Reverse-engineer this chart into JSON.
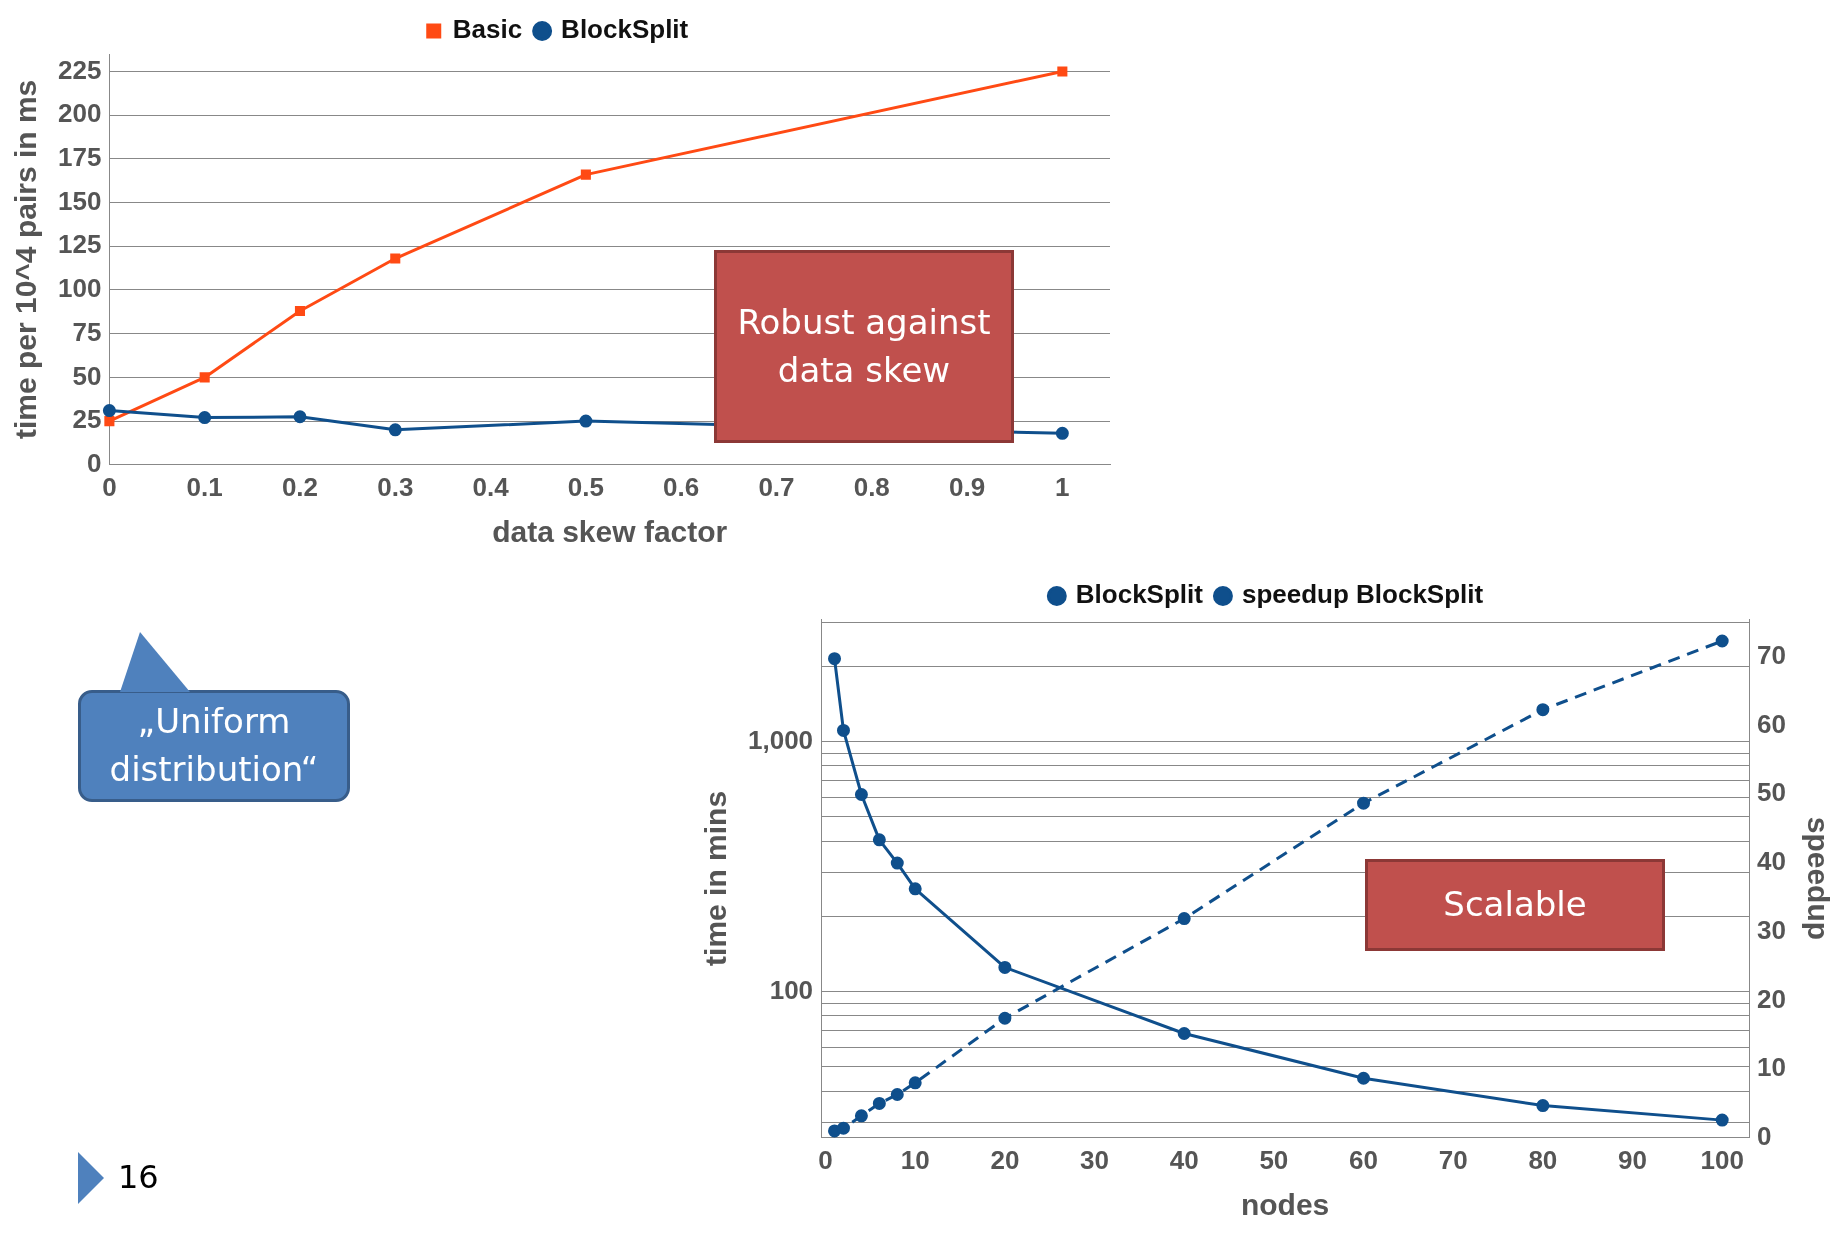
{
  "chart_data": [
    {
      "type": "line",
      "xlabel": "data skew factor",
      "ylabel": "time per 10^4 pairs in ms",
      "x": [
        0,
        0.1,
        0.2,
        0.3,
        0.5,
        1.0
      ],
      "series": [
        {
          "name": "Basic",
          "color": "#ff4a14",
          "marker": "square",
          "values": [
            25,
            50,
            88,
            118,
            166,
            225
          ]
        },
        {
          "name": "BlockSplit",
          "color": "#0f4f8c",
          "marker": "circle",
          "values": [
            31,
            27,
            27.5,
            20,
            25,
            18
          ]
        }
      ],
      "xlim": [
        0,
        1.05
      ],
      "xticks": [
        0,
        0.1,
        0.2,
        0.3,
        0.4,
        0.5,
        0.6,
        0.7,
        0.8,
        0.9,
        1.0
      ],
      "ylim": [
        0,
        235
      ],
      "yticks": [
        0,
        25,
        50,
        75,
        100,
        125,
        150,
        175,
        200,
        225
      ],
      "grid": "y",
      "legend": "top",
      "line_style": "solid",
      "annotations": [
        "Robust against data skew",
        "„Uniform distribution“",
        "16"
      ]
    },
    {
      "type": "line",
      "xlabel": "nodes",
      "ylabel": "time in mins",
      "y2label": "speedup",
      "x": [
        1,
        2,
        4,
        6,
        8,
        10,
        20,
        40,
        60,
        80,
        100
      ],
      "series": [
        {
          "name": "BlockSplit",
          "color": "#0f4f8c",
          "marker": "circle",
          "line_style": "solid",
          "values": [
            2150,
            1110,
            615,
            405,
            327,
            258,
            125,
            68,
            45,
            35,
            30.6
          ]
        },
        {
          "name": "speedup BlockSplit",
          "color": "#0f4f8c",
          "marker": "circle",
          "line_style": "dashed",
          "axis": "y2",
          "values": [
            1,
            1.4,
            3.2,
            5,
            6.3,
            8,
            17.4,
            31.9,
            48.7,
            62.3,
            72.3
          ]
        }
      ],
      "xlim": [
        -0.5,
        103
      ],
      "xticks": [
        0,
        10,
        20,
        30,
        40,
        50,
        60,
        70,
        80,
        90,
        100
      ],
      "ylim": [
        26,
        3100
      ],
      "yticks": [
        {
          "value": 30,
          "label": null
        },
        {
          "value": 40,
          "label": null
        },
        {
          "value": 50,
          "label": null
        },
        {
          "value": 60,
          "label": null
        },
        {
          "value": 70,
          "label": null
        },
        {
          "value": 80,
          "label": null
        },
        {
          "value": 90,
          "label": null
        },
        {
          "value": 100,
          "label": "100"
        },
        {
          "value": 200,
          "label": null
        },
        {
          "value": 300,
          "label": null
        },
        {
          "value": 400,
          "label": null
        },
        {
          "value": 500,
          "label": null
        },
        {
          "value": 600,
          "label": null
        },
        {
          "value": 700,
          "label": null
        },
        {
          "value": 800,
          "label": null
        },
        {
          "value": 900,
          "label": null
        },
        {
          "value": 1000,
          "label": "1,000"
        },
        {
          "value": 2000,
          "label": null
        },
        {
          "value": 3000,
          "label": null
        }
      ],
      "y2lim": [
        0,
        75.5
      ],
      "y2ticks": [
        0,
        10,
        20,
        30,
        40,
        50,
        60,
        70
      ],
      "log": "y",
      "grid": "y",
      "legend": "top",
      "annotations": [
        "Scalable"
      ]
    }
  ]
}
